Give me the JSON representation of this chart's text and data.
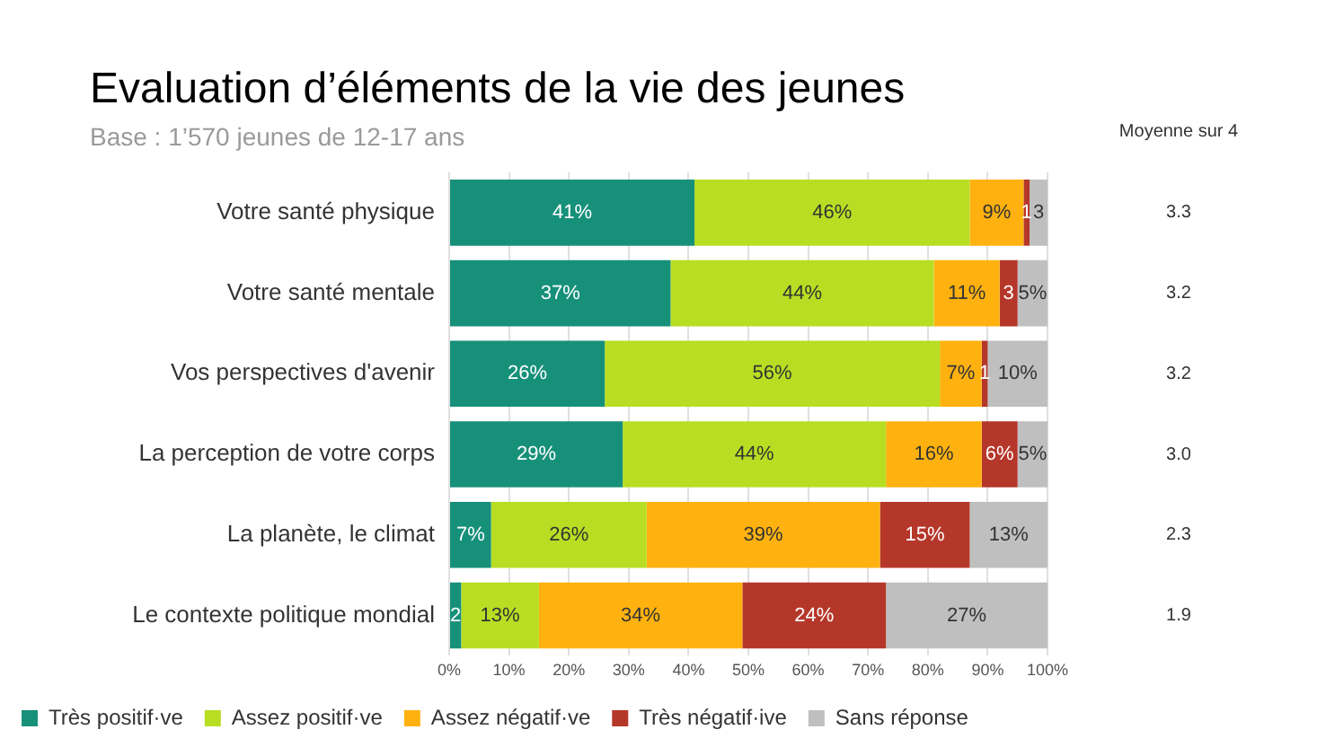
{
  "chart_data": {
    "type": "bar",
    "orientation": "horizontal",
    "stacked": true,
    "title": "Evaluation d’éléments de la vie des jeunes",
    "subtitle": "Base : 1’570 jeunes de 12-17 ans",
    "categories": [
      "Votre santé physique",
      "Votre santé mentale",
      "Vos perspectives d'avenir",
      "La perception de votre corps",
      "La planète, le climat",
      "Le contexte politique mondial"
    ],
    "series": [
      {
        "name": "Très positif·ve",
        "color": "#17907a",
        "values": [
          41,
          37,
          26,
          29,
          7,
          2
        ],
        "value_labels": [
          "41%",
          "37%",
          "26%",
          "29%",
          "7%",
          "2"
        ]
      },
      {
        "name": "Assez positif·ve",
        "color": "#b8de23",
        "values": [
          46,
          44,
          56,
          44,
          26,
          13
        ],
        "value_labels": [
          "46%",
          "44%",
          "56%",
          "44%",
          "26%",
          "13%"
        ]
      },
      {
        "name": "Assez négatif·ve",
        "color": "#ffb20f",
        "values": [
          9,
          11,
          7,
          16,
          39,
          34
        ],
        "value_labels": [
          "9%",
          "11%",
          "7%",
          "16%",
          "39%",
          "34%"
        ]
      },
      {
        "name": "Très négatif·ive",
        "color": "#b5372a",
        "values": [
          1,
          3,
          1,
          6,
          15,
          24
        ],
        "value_labels": [
          "1",
          "3",
          "1",
          "6%",
          "15%",
          "24%"
        ]
      },
      {
        "name": "Sans réponse",
        "color": "#bfbfbf",
        "values": [
          3,
          5,
          10,
          5,
          13,
          27
        ],
        "value_labels": [
          "3",
          "5%",
          "10%",
          "5%",
          "13%",
          "27%"
        ]
      }
    ],
    "xlim": [
      0,
      100
    ],
    "xticks": [
      {
        "value": 0,
        "label": "0%"
      },
      {
        "value": 10,
        "label": "10%"
      },
      {
        "value": 20,
        "label": "20%"
      },
      {
        "value": 30,
        "label": "30%"
      },
      {
        "value": 40,
        "label": "40%"
      },
      {
        "value": 50,
        "label": "50%"
      },
      {
        "value": 60,
        "label": "60%"
      },
      {
        "value": 70,
        "label": "70%"
      },
      {
        "value": 80,
        "label": "80%"
      },
      {
        "value": 90,
        "label": "90%"
      },
      {
        "value": 100,
        "label": "100%"
      }
    ],
    "grid": "x",
    "legend": "bottom left",
    "annotations": [
      "Moyenne sur 4",
      "3.3",
      "3.2",
      "3.2",
      "3.0",
      "2.3",
      "1.9"
    ]
  }
}
